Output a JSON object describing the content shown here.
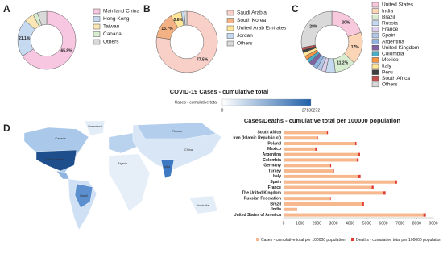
{
  "chart_data": [
    {
      "type": "pie",
      "label": "A",
      "categories": [
        "Mainland China",
        "Hong Kong",
        "Taiwan",
        "Canada",
        "Others"
      ],
      "values": [
        65.8,
        21.1,
        5.3,
        2.6,
        5.2
      ],
      "value_labels": [
        "65.8%",
        "21.1%",
        null,
        null,
        null
      ],
      "colors": [
        "#f7c6e0",
        "#c5d9f1",
        "#fbe7b5",
        "#d8ecd0",
        "#d9d9d9"
      ]
    },
    {
      "type": "pie",
      "label": "B",
      "categories": [
        "Saudi Arabia",
        "South Korea",
        "United Arab Emirates",
        "Jordan",
        "Others"
      ],
      "values": [
        77.5,
        13.7,
        5.8,
        1.5,
        1.5
      ],
      "value_labels": [
        "77.5%",
        "13.7%",
        "5.8%",
        null,
        null
      ],
      "colors": [
        "#f8d0c8",
        "#f4b183",
        "#ffe699",
        "#c5d9f1",
        "#d9d9d9"
      ]
    },
    {
      "type": "pie",
      "label": "C",
      "categories": [
        "United States",
        "India",
        "Brazil",
        "Russia",
        "France",
        "Spain",
        "Argentina",
        "United Kingdom",
        "Colombia",
        "Mexico",
        "Italy",
        "Peru",
        "South Africa",
        "Others"
      ],
      "values": [
        20,
        17,
        11.2,
        5,
        2.5,
        2.5,
        2.5,
        2.5,
        2,
        2,
        2,
        1.5,
        1.3,
        28
      ],
      "value_labels": [
        "20%",
        "17%",
        "11.2%",
        null,
        null,
        null,
        null,
        null,
        null,
        null,
        null,
        null,
        null,
        "28%"
      ],
      "colors": [
        "#f8c8dc",
        "#fbd5b5",
        "#d8ecd0",
        "#c5d9f1",
        "#dcd0ec",
        "#b4c7e7",
        "#8fb4e0",
        "#8064a2",
        "#4bacc6",
        "#f79646",
        "#ffe699",
        "#404040",
        "#c0504d",
        "#d9d9d9"
      ]
    },
    {
      "type": "map",
      "label": "D",
      "title": "COVID-19 Cases - cumulative total",
      "colorbar_label": "Cases - cumulative total",
      "colorbar_ticks": [
        0,
        27130272
      ],
      "colorbar_colors": [
        "#ffffff",
        "#1f5fa8"
      ],
      "map_labels": [
        "Canada",
        "Greenland",
        "United States",
        "Brazil",
        "Algeria",
        "Russia",
        "China",
        "India",
        "Australia"
      ]
    },
    {
      "type": "bar",
      "title": "Cases/Deaths - cumulative total per 100000 population",
      "categories": [
        "South Africa",
        "Iran (Islamic Republic of)",
        "Poland",
        "Mexico",
        "Argentina",
        "Colombia",
        "Germany",
        "Turkey",
        "Italy",
        "Spain",
        "France",
        "The United Kingdom",
        "Russian Federation",
        "Brazil",
        "India",
        "United States of America"
      ],
      "series": [
        {
          "name": "Cases - cumulative total per 100000 population",
          "color": "#f7b88e",
          "values": [
            2600,
            2000,
            4300,
            1900,
            4500,
            4400,
            2800,
            3000,
            4500,
            6700,
            5300,
            6000,
            2800,
            4700,
            800,
            8400
          ]
        },
        {
          "name": "Deaths - cumulative total per 100000 population",
          "color": "#e03c31",
          "values": [
            70,
            65,
            80,
            120,
            95,
            110,
            60,
            30,
            130,
            120,
            110,
            130,
            40,
            130,
            10,
            150
          ]
        }
      ],
      "stacked": true,
      "xlim": [
        0,
        9000
      ],
      "xticks": [
        0,
        1000,
        2000,
        3000,
        4000,
        5000,
        6000,
        7000,
        8000,
        9000
      ]
    }
  ]
}
